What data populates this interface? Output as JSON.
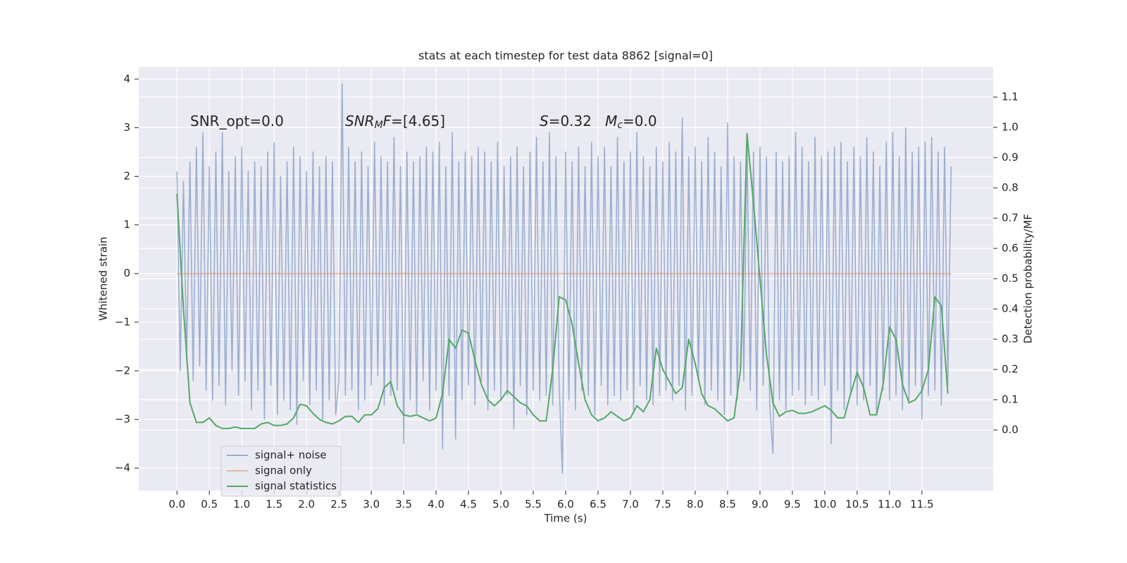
{
  "chart_data": {
    "type": "line",
    "title": "stats at each timestep for test data 8862 [signal=0]",
    "xlabel": "Time (s)",
    "ylabel": "Whitened strain",
    "y2label": "Detection probability/MF",
    "xlim": [
      -0.59,
      12.6
    ],
    "ylim": [
      -4.46,
      4.25
    ],
    "y2lim": [
      -0.2,
      1.2
    ],
    "xticks": [
      {
        "value": 0,
        "label": "0.0"
      },
      0.5,
      {
        "value": 1,
        "label": "1.0"
      },
      1.5,
      {
        "value": 2,
        "label": "2.0"
      },
      2.5,
      {
        "value": 3,
        "label": "3.0"
      },
      3.5,
      {
        "value": 4,
        "label": "4.0"
      },
      4.5,
      {
        "value": 5,
        "label": "5.0"
      },
      5.5,
      {
        "value": 6,
        "label": "6.0"
      },
      6.5,
      {
        "value": 7,
        "label": "7.0"
      },
      7.5,
      {
        "value": 8,
        "label": "8.0"
      },
      8.5,
      {
        "value": 9,
        "label": "9.0"
      },
      9.5,
      {
        "value": 10,
        "label": "10.0"
      },
      10.5,
      {
        "value": 11,
        "label": "11.0"
      },
      11.5
    ],
    "yticks": [
      {
        "value": -4,
        "label": "−4"
      },
      {
        "value": -3,
        "label": "−3"
      },
      {
        "value": -2,
        "label": "−2"
      },
      {
        "value": -1,
        "label": "−1"
      },
      0,
      1,
      2,
      3,
      4
    ],
    "y2ticks": [
      {
        "value": 0,
        "label": "0.0"
      },
      0.1,
      0.2,
      0.3,
      0.4,
      0.5,
      0.6,
      0.7,
      0.8,
      0.9,
      {
        "value": 1,
        "label": "1.0"
      },
      1.1
    ],
    "grid": true,
    "legend": "lower left",
    "annotations": [
      {
        "parts": [
          {
            "text": "SNR_opt=0.0"
          }
        ]
      },
      {
        "parts": [
          {
            "text": "SNR",
            "style": "italic"
          },
          {
            "text": "M",
            "style": "sub"
          },
          {
            "text": "F",
            "style": "italic"
          },
          {
            "text": "=[4.65]"
          }
        ]
      },
      {
        "parts": [
          {
            "text": "S",
            "style": "italic"
          },
          {
            "text": "=0.32   "
          },
          {
            "text": "M",
            "style": "italic"
          },
          {
            "text": "c",
            "style": "sub"
          },
          {
            "text": "=0.0"
          }
        ]
      }
    ],
    "series": [
      {
        "name": "signal+ noise",
        "color": "#4c72b0",
        "alpha": 0.5,
        "x": [
          0,
          0.05,
          0.1,
          0.15,
          0.2,
          0.25,
          0.3,
          0.35,
          0.4,
          0.45,
          0.5,
          0.55,
          0.6,
          0.65,
          0.7,
          0.75,
          0.8,
          0.85,
          0.9,
          0.95,
          1,
          1.05,
          1.1,
          1.15,
          1.2,
          1.25,
          1.3,
          1.35,
          1.4,
          1.45,
          1.5,
          1.55,
          1.6,
          1.65,
          1.7,
          1.75,
          1.8,
          1.85,
          1.9,
          1.95,
          2,
          2.05,
          2.1,
          2.15,
          2.2,
          2.25,
          2.3,
          2.35,
          2.4,
          2.45,
          2.5,
          2.55,
          2.6,
          2.65,
          2.7,
          2.75,
          2.8,
          2.85,
          2.9,
          2.95,
          3,
          3.05,
          3.1,
          3.15,
          3.2,
          3.25,
          3.3,
          3.35,
          3.4,
          3.45,
          3.5,
          3.55,
          3.6,
          3.65,
          3.7,
          3.75,
          3.8,
          3.85,
          3.9,
          3.95,
          4,
          4.05,
          4.1,
          4.15,
          4.2,
          4.25,
          4.3,
          4.35,
          4.4,
          4.45,
          4.5,
          4.55,
          4.6,
          4.65,
          4.7,
          4.75,
          4.8,
          4.85,
          4.9,
          4.95,
          5,
          5.05,
          5.1,
          5.15,
          5.2,
          5.25,
          5.3,
          5.35,
          5.4,
          5.45,
          5.5,
          5.55,
          5.6,
          5.65,
          5.7,
          5.75,
          5.8,
          5.85,
          5.9,
          5.95,
          6,
          6.05,
          6.1,
          6.15,
          6.2,
          6.25,
          6.3,
          6.35,
          6.4,
          6.45,
          6.5,
          6.55,
          6.6,
          6.65,
          6.7,
          6.75,
          6.8,
          6.85,
          6.9,
          6.95,
          7,
          7.05,
          7.1,
          7.15,
          7.2,
          7.25,
          7.3,
          7.35,
          7.4,
          7.45,
          7.5,
          7.55,
          7.6,
          7.65,
          7.7,
          7.75,
          7.8,
          7.85,
          7.9,
          7.95,
          8,
          8.05,
          8.1,
          8.15,
          8.2,
          8.25,
          8.3,
          8.35,
          8.4,
          8.45,
          8.5,
          8.55,
          8.6,
          8.65,
          8.7,
          8.75,
          8.8,
          8.85,
          8.9,
          8.95,
          9,
          9.05,
          9.1,
          9.15,
          9.2,
          9.25,
          9.3,
          9.35,
          9.4,
          9.45,
          9.5,
          9.55,
          9.6,
          9.65,
          9.7,
          9.75,
          9.8,
          9.85,
          9.9,
          9.95,
          10,
          10.05,
          10.1,
          10.15,
          10.2,
          10.25,
          10.3,
          10.35,
          10.4,
          10.45,
          10.5,
          10.55,
          10.6,
          10.65,
          10.7,
          10.75,
          10.8,
          10.85,
          10.9,
          10.95,
          11,
          11.05,
          11.1,
          11.15,
          11.2,
          11.25,
          11.3,
          11.35,
          11.4,
          11.45,
          11.5,
          11.55,
          11.6,
          11.65,
          11.7,
          11.75,
          11.8,
          11.85,
          11.9,
          11.95
        ],
        "values": [
          2.1,
          -2.0,
          1.9,
          -1.8,
          2.3,
          -2.2,
          2.6,
          -1.9,
          2.9,
          -2.4,
          2.2,
          -2.6,
          2.5,
          -2.3,
          2.9,
          -2.7,
          2.1,
          -2.0,
          2.4,
          -2.5,
          2.6,
          -2.2,
          2.1,
          -2.8,
          2.3,
          -2.4,
          2.2,
          -3.0,
          2.5,
          -2.3,
          2.7,
          -2.9,
          2.0,
          -2.6,
          2.3,
          -2.8,
          2.6,
          -3.1,
          2.4,
          -2.2,
          2.1,
          -2.7,
          2.5,
          -2.4,
          2.2,
          -3.0,
          2.4,
          -2.6,
          2.3,
          -2.9,
          -2.2,
          3.9,
          -2.5,
          2.6,
          -2.4,
          2.3,
          -2.8,
          2.5,
          -2.6,
          2.2,
          -2.3,
          2.7,
          -2.1,
          2.4,
          -2.7,
          2.3,
          -2.5,
          2.8,
          -2.4,
          2.2,
          -3.5,
          2.5,
          -2.6,
          2.3,
          -2.9,
          2.4,
          -2.2,
          2.6,
          -2.8,
          2.5,
          -2.4,
          2.7,
          -3.6,
          2.2,
          -2.5,
          2.9,
          -3.4,
          2.3,
          -2.6,
          2.5,
          -2.3,
          2.4,
          -2.7,
          2.6,
          -2.2,
          2.5,
          -2.8,
          2.3,
          -2.4,
          2.7,
          -2.6,
          2.2,
          -2.5,
          2.4,
          -3.2,
          2.6,
          -2.3,
          2.2,
          -2.9,
          2.5,
          -2.4,
          2.8,
          -2.6,
          2.3,
          -2.5,
          2.9,
          -2.7,
          2.4,
          -2.3,
          -4.1,
          2.5,
          -2.6,
          2.3,
          -2.8,
          2.6,
          -2.4,
          2.2,
          -2.5,
          2.7,
          -2.9,
          2.4,
          -2.3,
          2.6,
          -2.7,
          2.2,
          -2.5,
          2.8,
          -2.6,
          2.3,
          -2.4,
          2.5,
          -2.8,
          2.9,
          -2.3,
          2.4,
          -2.6,
          2.2,
          -2.7,
          2.6,
          -2.5,
          2.3,
          -2.4,
          2.7,
          -2.6,
          2.5,
          -2.3,
          3.2,
          -2.8,
          2.4,
          -2.5,
          2.6,
          -2.2,
          2.3,
          -2.7,
          2.8,
          -2.4,
          2.5,
          -2.6,
          2.2,
          -2.9,
          3.1,
          -2.5,
          2.4,
          -2.6,
          2.3,
          -2.2,
          2.7,
          -2.4,
          2.5,
          -2.8,
          2.6,
          -2.3,
          2.4,
          -2.7,
          -3.7,
          2.5,
          -2.6,
          2.3,
          -2.8,
          2.4,
          -2.5,
          2.9,
          -2.4,
          2.6,
          -2.7,
          2.3,
          -2.5,
          2.8,
          -2.6,
          2.4,
          -2.3,
          2.5,
          -3.5,
          2.6,
          -2.4,
          2.7,
          -2.8,
          2.3,
          -2.5,
          2.6,
          -2.7,
          2.4,
          -2.6,
          2.8,
          -2.3,
          2.5,
          -2.9,
          2.2,
          -2.4,
          2.7,
          -2.6,
          2.9,
          -2.5,
          2.4,
          -2.8,
          3.0,
          -2.6,
          2.5,
          -2.3,
          2.6,
          -3.0,
          2.7,
          -2.5,
          2.8,
          -2.4,
          2.5,
          -2.7,
          2.6,
          -2.3,
          2.2
        ]
      },
      {
        "name": "signal only",
        "color": "#dd8452",
        "alpha": 0.5,
        "x": [
          0,
          11.95
        ],
        "values": [
          0,
          0
        ]
      },
      {
        "name": "signal statistics",
        "color": "#55a868",
        "axis": "y2",
        "x": [
          0,
          0.1,
          0.2,
          0.3,
          0.4,
          0.5,
          0.6,
          0.7,
          0.8,
          0.9,
          1,
          1.1,
          1.2,
          1.3,
          1.4,
          1.5,
          1.6,
          1.7,
          1.8,
          1.9,
          2,
          2.1,
          2.2,
          2.3,
          2.4,
          2.5,
          2.6,
          2.7,
          2.8,
          2.9,
          3,
          3.1,
          3.2,
          3.3,
          3.4,
          3.5,
          3.6,
          3.7,
          3.8,
          3.9,
          4,
          4.1,
          4.2,
          4.3,
          4.4,
          4.5,
          4.6,
          4.7,
          4.8,
          4.9,
          5,
          5.1,
          5.2,
          5.3,
          5.4,
          5.5,
          5.6,
          5.7,
          5.8,
          5.9,
          6,
          6.1,
          6.2,
          6.3,
          6.4,
          6.5,
          6.6,
          6.7,
          6.8,
          6.9,
          7,
          7.1,
          7.2,
          7.3,
          7.4,
          7.5,
          7.6,
          7.7,
          7.8,
          7.9,
          8,
          8.1,
          8.2,
          8.3,
          8.4,
          8.5,
          8.6,
          8.7,
          8.8,
          8.9,
          9,
          9.1,
          9.2,
          9.3,
          9.4,
          9.5,
          9.6,
          9.7,
          9.8,
          9.9,
          10,
          10.1,
          10.2,
          10.3,
          10.4,
          10.5,
          10.6,
          10.7,
          10.8,
          10.9,
          11,
          11.1,
          11.2,
          11.3,
          11.4,
          11.5,
          11.6,
          11.7,
          11.8,
          11.9
        ],
        "values": [
          0.78,
          0.4,
          0.09,
          0.025,
          0.025,
          0.04,
          0.015,
          0.005,
          0.005,
          0.01,
          0.005,
          0.005,
          0.005,
          0.02,
          0.025,
          0.015,
          0.015,
          0.02,
          0.04,
          0.085,
          0.08,
          0.055,
          0.035,
          0.025,
          0.02,
          0.03,
          0.045,
          0.045,
          0.025,
          0.05,
          0.05,
          0.07,
          0.14,
          0.16,
          0.08,
          0.05,
          0.045,
          0.05,
          0.04,
          0.03,
          0.04,
          0.12,
          0.3,
          0.27,
          0.33,
          0.32,
          0.23,
          0.15,
          0.1,
          0.08,
          0.1,
          0.13,
          0.11,
          0.09,
          0.08,
          0.05,
          0.03,
          0.03,
          0.2,
          0.44,
          0.43,
          0.35,
          0.22,
          0.1,
          0.05,
          0.03,
          0.04,
          0.06,
          0.045,
          0.03,
          0.04,
          0.08,
          0.06,
          0.1,
          0.27,
          0.2,
          0.16,
          0.12,
          0.14,
          0.3,
          0.22,
          0.12,
          0.08,
          0.07,
          0.05,
          0.03,
          0.04,
          0.2,
          0.98,
          0.75,
          0.5,
          0.25,
          0.09,
          0.045,
          0.06,
          0.065,
          0.055,
          0.055,
          0.06,
          0.07,
          0.08,
          0.065,
          0.04,
          0.04,
          0.12,
          0.19,
          0.14,
          0.05,
          0.05,
          0.15,
          0.34,
          0.3,
          0.15,
          0.09,
          0.1,
          0.13,
          0.2,
          0.44,
          0.41,
          0.12
        ]
      }
    ]
  }
}
